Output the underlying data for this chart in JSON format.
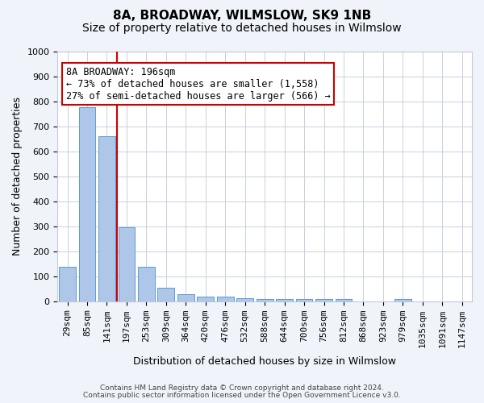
{
  "title": "8A, BROADWAY, WILMSLOW, SK9 1NB",
  "subtitle": "Size of property relative to detached houses in Wilmslow",
  "xlabel": "Distribution of detached houses by size in Wilmslow",
  "ylabel": "Number of detached properties",
  "categories": [
    "29sqm",
    "85sqm",
    "141sqm",
    "197sqm",
    "253sqm",
    "309sqm",
    "364sqm",
    "420sqm",
    "476sqm",
    "532sqm",
    "588sqm",
    "644sqm",
    "700sqm",
    "756sqm",
    "812sqm",
    "868sqm",
    "923sqm",
    "979sqm",
    "1035sqm",
    "1091sqm",
    "1147sqm"
  ],
  "values": [
    140,
    778,
    660,
    295,
    138,
    55,
    30,
    18,
    18,
    12,
    8,
    10,
    10,
    10,
    8,
    0,
    0,
    10,
    0,
    0,
    0
  ],
  "bar_color": "#aec6e8",
  "bar_edge_color": "#5b9bd5",
  "red_line_x": 2.5,
  "annotation_text": "8A BROADWAY: 196sqm\n← 73% of detached houses are smaller (1,558)\n27% of semi-detached houses are larger (566) →",
  "annotation_box_color": "#ffffff",
  "annotation_box_edge": "#cc0000",
  "ylim": [
    0,
    1000
  ],
  "yticks": [
    0,
    100,
    200,
    300,
    400,
    500,
    600,
    700,
    800,
    900,
    1000
  ],
  "footer1": "Contains HM Land Registry data © Crown copyright and database right 2024.",
  "footer2": "Contains public sector information licensed under the Open Government Licence v3.0.",
  "background_color": "#f0f4fa",
  "plot_background": "#ffffff",
  "grid_color": "#c8d0e0",
  "title_fontsize": 11,
  "subtitle_fontsize": 10,
  "axis_label_fontsize": 9,
  "tick_fontsize": 8,
  "annotation_fontsize": 8.5
}
